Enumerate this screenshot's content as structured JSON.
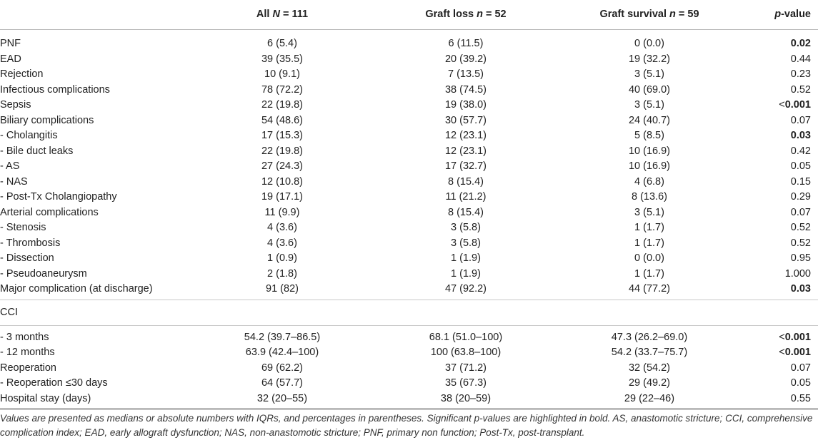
{
  "header": {
    "col0": "",
    "col1_prefix": "All ",
    "col1_var": "N",
    "col1_suffix": " = 111",
    "col2_prefix": "Graft loss ",
    "col2_var": "n",
    "col2_suffix": " = 52",
    "col3_prefix": "Graft survival ",
    "col3_var": "n",
    "col3_suffix": " = 59",
    "col4_var": "p",
    "col4_suffix": "-value"
  },
  "rows": [
    {
      "label": "PNF",
      "all": "6 (5.4)",
      "loss": "6 (11.5)",
      "survival": "0 (0.0)",
      "p": "0.02",
      "sig": true
    },
    {
      "label": "EAD",
      "all": "39 (35.5)",
      "loss": "20 (39.2)",
      "survival": "19 (32.2)",
      "p": "0.44",
      "sig": false
    },
    {
      "label": "Rejection",
      "all": "10 (9.1)",
      "loss": "7 (13.5)",
      "survival": "3 (5.1)",
      "p": "0.23",
      "sig": false
    },
    {
      "label": "Infectious complications",
      "all": "78 (72.2)",
      "loss": "38 (74.5)",
      "survival": "40 (69.0)",
      "p": "0.52",
      "sig": false
    },
    {
      "label": "Sepsis",
      "all": "22 (19.8)",
      "loss": "19 (38.0)",
      "survival": "3 (5.1)",
      "p_prefix": "<",
      "p": "0.001",
      "sig": true
    },
    {
      "label": "Biliary complications",
      "all": "54 (48.6)",
      "loss": "30 (57.7)",
      "survival": "24 (40.7)",
      "p": "0.07",
      "sig": false
    },
    {
      "label": "- Cholangitis",
      "all": "17 (15.3)",
      "loss": "12 (23.1)",
      "survival": "5 (8.5)",
      "p": "0.03",
      "sig": true
    },
    {
      "label": "- Bile duct leaks",
      "all": "22 (19.8)",
      "loss": "12 (23.1)",
      "survival": "10 (16.9)",
      "p": "0.42",
      "sig": false
    },
    {
      "label": "- AS",
      "all": "27 (24.3)",
      "loss": "17 (32.7)",
      "survival": "10 (16.9)",
      "p": "0.05",
      "sig": false
    },
    {
      "label": "- NAS",
      "all": "12 (10.8)",
      "loss": "8 (15.4)",
      "survival": "4 (6.8)",
      "p": "0.15",
      "sig": false
    },
    {
      "label": "- Post-Tx Cholangiopathy",
      "all": "19 (17.1)",
      "loss": "11 (21.2)",
      "survival": "8 (13.6)",
      "p": "0.29",
      "sig": false
    },
    {
      "label": "Arterial complications",
      "all": "11 (9.9)",
      "loss": "8 (15.4)",
      "survival": "3 (5.1)",
      "p": "0.07",
      "sig": false
    },
    {
      "label": "- Stenosis",
      "all": "4 (3.6)",
      "loss": "3 (5.8)",
      "survival": "1 (1.7)",
      "p": "0.52",
      "sig": false
    },
    {
      "label": "- Thrombosis",
      "all": "4 (3.6)",
      "loss": "3 (5.8)",
      "survival": "1 (1.7)",
      "p": "0.52",
      "sig": false
    },
    {
      "label": "- Dissection",
      "all": "1 (0.9)",
      "loss": "1 (1.9)",
      "survival": "0 (0.0)",
      "p": "0.95",
      "sig": false
    },
    {
      "label": "- Pseudoaneurysm",
      "all": "2 (1.8)",
      "loss": "1 (1.9)",
      "survival": "1 (1.7)",
      "p": "1.000",
      "sig": false
    },
    {
      "label": "Major complication (at discharge)",
      "all": "91 (82)",
      "loss": "47 (92.2)",
      "survival": "44 (77.2)",
      "p": "0.03",
      "sig": true
    }
  ],
  "cci_label": "CCI",
  "rows2": [
    {
      "label": "- 3 months",
      "all": "54.2 (39.7–86.5)",
      "loss": "68.1 (51.0–100)",
      "survival": "47.3 (26.2–69.0)",
      "p_prefix": "<",
      "p": "0.001",
      "sig": true
    },
    {
      "label": "- 12 months",
      "all": "63.9 (42.4–100)",
      "loss": "100 (63.8–100)",
      "survival": "54.2 (33.7–75.7)",
      "p_prefix": "<",
      "p": "0.001",
      "sig": true
    },
    {
      "label": "Reoperation",
      "all": "69 (62.2)",
      "loss": "37 (71.2)",
      "survival": "32 (54.2)",
      "p": "0.07",
      "sig": false
    },
    {
      "label": "- Reoperation ≤30 days",
      "all": "64 (57.7)",
      "loss": "35 (67.3)",
      "survival": "29 (49.2)",
      "p": "0.05",
      "sig": false
    },
    {
      "label": "Hospital stay (days)",
      "all": "32 (20–55)",
      "loss": "38 (20–59)",
      "survival": "29 (22–46)",
      "p": "0.55",
      "sig": false
    }
  ],
  "footnote": "Values are presented as medians or absolute numbers with IQRs, and percentages in parentheses. Significant p-values are highlighted in bold. AS, anastomotic stricture; CCI, comprehensive complication index; EAD, early allograft dysfunction; NAS, non-anastomotic stricture; PNF, primary non function; Post-Tx, post-transplant."
}
